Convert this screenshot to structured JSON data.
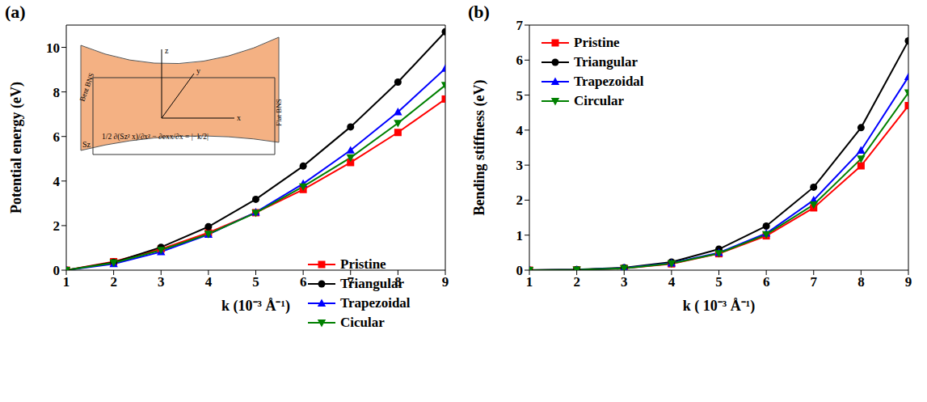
{
  "chart_data": [
    {
      "type": "line",
      "title": "(a)",
      "x_label": "k (10⁻³ Å⁻¹)",
      "y_label": "Potential energy (eV)",
      "x": [
        1,
        2,
        3,
        4,
        5,
        6,
        7,
        8,
        9
      ],
      "xlim": [
        1,
        9
      ],
      "xticks": [
        1,
        2,
        3,
        4,
        5,
        6,
        7,
        8,
        9
      ],
      "ylim": [
        0,
        11
      ],
      "yticks": [
        0,
        2,
        4,
        6,
        8,
        10
      ],
      "grid": false,
      "legend": "lower right",
      "series": [
        {
          "name": "Pristine",
          "color": "#ff0000",
          "marker": "square",
          "values": [
            0,
            0.38,
            0.95,
            1.68,
            2.58,
            3.62,
            4.83,
            6.18,
            7.68
          ]
        },
        {
          "name": "Triangular",
          "color": "#000000",
          "marker": "circle",
          "values": [
            0,
            0.35,
            1.03,
            1.95,
            3.18,
            4.67,
            6.43,
            8.44,
            10.7
          ]
        },
        {
          "name": "Trapezoidal",
          "color": "#0000ff",
          "marker": "triangle-up",
          "values": [
            0,
            0.28,
            0.82,
            1.6,
            2.6,
            3.88,
            5.38,
            7.1,
            9.05
          ]
        },
        {
          "name": "Cicular",
          "color": "#008000",
          "marker": "triangle-down",
          "values": [
            0,
            0.33,
            0.9,
            1.62,
            2.57,
            3.75,
            5.05,
            6.6,
            8.3
          ]
        }
      ],
      "annotations": [
        "z",
        "y",
        "x",
        "Bent BNS",
        "Flat BNS",
        "Sz",
        "1/2 ∂(Sz² x)/∂x² − ∂exx/∂x = |−k/2|"
      ]
    },
    {
      "type": "line",
      "title": "(b)",
      "x_label": "k ( 10⁻³ Å⁻¹)",
      "y_label": "Bending stiffness (eV)",
      "x": [
        1,
        2,
        3,
        4,
        5,
        6,
        7,
        8,
        9
      ],
      "xlim": [
        1,
        9
      ],
      "xticks": [
        1,
        2,
        3,
        4,
        5,
        6,
        7,
        8,
        9
      ],
      "ylim": [
        0,
        7
      ],
      "yticks": [
        0,
        1,
        2,
        3,
        4,
        5,
        6,
        7
      ],
      "grid": false,
      "legend": "upper left",
      "series": [
        {
          "name": "Pristine",
          "color": "#ff0000",
          "marker": "square",
          "values": [
            0,
            0.01,
            0.05,
            0.18,
            0.47,
            0.98,
            1.78,
            2.98,
            4.7
          ]
        },
        {
          "name": "Triangular",
          "color": "#000000",
          "marker": "circle",
          "values": [
            0,
            0.02,
            0.07,
            0.23,
            0.6,
            1.26,
            2.37,
            4.07,
            6.55
          ]
        },
        {
          "name": "Trapezoidal",
          "color": "#0000ff",
          "marker": "triangle-up",
          "values": [
            0,
            0.01,
            0.06,
            0.2,
            0.5,
            1.05,
            2.0,
            3.42,
            5.52
          ]
        },
        {
          "name": "Circular",
          "color": "#008000",
          "marker": "triangle-down",
          "values": [
            0,
            0.01,
            0.05,
            0.19,
            0.48,
            1.02,
            1.87,
            3.18,
            5.07
          ]
        }
      ]
    }
  ]
}
